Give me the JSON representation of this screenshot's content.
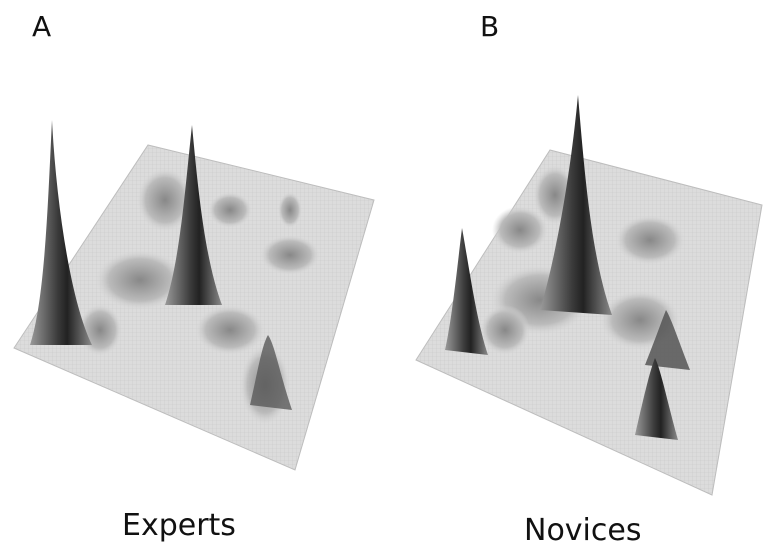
{
  "panels": [
    {
      "letter": "A",
      "caption": "Experts"
    },
    {
      "letter": "B",
      "caption": "Novices"
    }
  ],
  "colors": {
    "surface": "#d9d9d9",
    "surface_light": "#ececec",
    "shadow": "#333333"
  }
}
